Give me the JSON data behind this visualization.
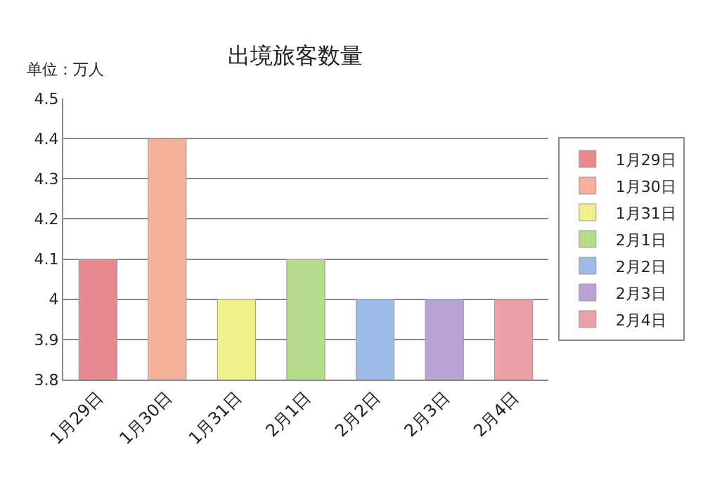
{
  "chart_data": {
    "type": "bar",
    "title": "出境旅客数量",
    "ylabel": "单位：万人",
    "categories": [
      "1月29日",
      "1月30日",
      "1月31日",
      "2月1日",
      "2月2日",
      "2月3日",
      "2月4日"
    ],
    "series": [
      {
        "name": "1月29日",
        "color": "#e8888f",
        "values": [
          4.1,
          null,
          null,
          null,
          null,
          null,
          null
        ]
      },
      {
        "name": "1月30日",
        "color": "#f5b09a",
        "values": [
          null,
          4.4,
          null,
          null,
          null,
          null,
          null
        ]
      },
      {
        "name": "1月31日",
        "color": "#f0f08a",
        "values": [
          null,
          null,
          4.0,
          null,
          null,
          null,
          null
        ]
      },
      {
        "name": "2月1日",
        "color": "#b5dc8a",
        "values": [
          null,
          null,
          null,
          4.1,
          null,
          null,
          null
        ]
      },
      {
        "name": "2月2日",
        "color": "#9dbbe8",
        "values": [
          null,
          null,
          null,
          null,
          4.0,
          null,
          null
        ]
      },
      {
        "name": "2月3日",
        "color": "#b8a3d4",
        "values": [
          null,
          null,
          null,
          null,
          null,
          4.0,
          null
        ]
      },
      {
        "name": "2月4日",
        "color": "#eba0a8",
        "values": [
          null,
          null,
          null,
          null,
          null,
          null,
          4.0
        ]
      }
    ],
    "ylim": [
      3.8,
      4.5
    ],
    "yticks": [
      3.8,
      3.9,
      4,
      4.1,
      4.2,
      4.3,
      4.4,
      4.5
    ],
    "grid": "y",
    "legend": "right"
  }
}
